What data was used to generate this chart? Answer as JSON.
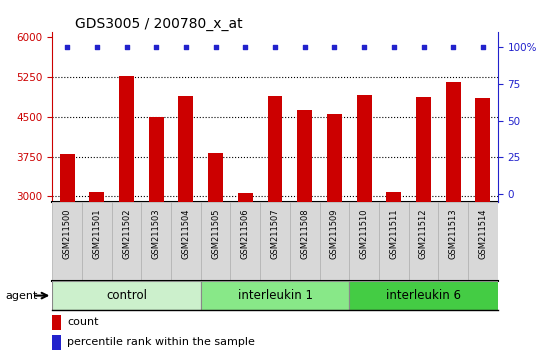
{
  "title": "GDS3005 / 200780_x_at",
  "samples": [
    "GSM211500",
    "GSM211501",
    "GSM211502",
    "GSM211503",
    "GSM211504",
    "GSM211505",
    "GSM211506",
    "GSM211507",
    "GSM211508",
    "GSM211509",
    "GSM211510",
    "GSM211511",
    "GSM211512",
    "GSM211513",
    "GSM211514"
  ],
  "counts": [
    3800,
    3080,
    5270,
    4500,
    4900,
    3820,
    3060,
    4900,
    4620,
    4560,
    4920,
    3080,
    4870,
    5160,
    4860
  ],
  "percentile": [
    100,
    100,
    100,
    100,
    100,
    100,
    100,
    100,
    100,
    100,
    100,
    100,
    100,
    100,
    100
  ],
  "groups": [
    {
      "label": "control",
      "start": 0,
      "end": 5,
      "color": "#ccf0cc"
    },
    {
      "label": "interleukin 1",
      "start": 5,
      "end": 10,
      "color": "#88e888"
    },
    {
      "label": "interleukin 6",
      "start": 10,
      "end": 15,
      "color": "#44cc44"
    }
  ],
  "ylim_left": [
    2900,
    6100
  ],
  "yticks_left": [
    3000,
    3750,
    4500,
    5250,
    6000
  ],
  "ylim_right": [
    -5,
    110
  ],
  "yticks_right": [
    0,
    25,
    50,
    75,
    100
  ],
  "bar_color": "#cc0000",
  "dot_color": "#2222cc",
  "grid_color": "#000000",
  "axis_left_color": "#cc0000",
  "axis_right_color": "#2222cc",
  "agent_label": "agent",
  "legend_count_label": "count",
  "legend_pct_label": "percentile rank within the sample",
  "title_fontsize": 10,
  "tick_fontsize": 7.5,
  "group_label_fontsize": 8.5,
  "legend_fontsize": 8,
  "sample_fontsize": 6.0,
  "bg_color": "#ffffff"
}
